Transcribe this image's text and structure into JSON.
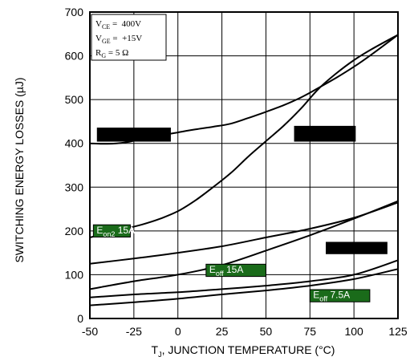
{
  "chart_data": {
    "type": "line",
    "title": "",
    "xlabel": "T_J, JUNCTION TEMPERATURE (°C)",
    "ylabel": "SWITCHING ENERGY LOSSES (µJ)",
    "xlim": [
      -50,
      125
    ],
    "ylim": [
      0,
      700
    ],
    "x_ticks": [
      "-50",
      "-25",
      "0",
      "25",
      "50",
      "75",
      "100",
      "125"
    ],
    "y_ticks": [
      "0",
      "100",
      "200",
      "300",
      "400",
      "500",
      "600",
      "700"
    ],
    "grid": true,
    "line_color": "#000000",
    "label_bg_color": "#1a6b1a",
    "redaction_color": "#000000",
    "conditions": {
      "vce": {
        "name": "V",
        "sub": "CE",
        "value": " =  400V"
      },
      "vge": {
        "name": "V",
        "sub": "GE",
        "value": " =  +15V"
      },
      "rg": {
        "name": "R",
        "sub": "G",
        "value": " = 5 Ω"
      }
    },
    "series": [
      {
        "id": "upper-redacted",
        "label_visible": false,
        "x": [
          -50,
          -40,
          -30,
          -20,
          -10,
          0,
          10,
          20,
          30,
          40,
          50,
          60,
          70,
          80,
          90,
          100,
          110,
          125
        ],
        "y": [
          400,
          399,
          402,
          410,
          418,
          425,
          432,
          438,
          445,
          458,
          472,
          487,
          505,
          527,
          550,
          575,
          603,
          648
        ]
      },
      {
        "id": "middle-redacted",
        "label_visible": false,
        "x": [
          -50,
          -40,
          -30,
          -20,
          -10,
          0,
          10,
          20,
          30,
          40,
          50,
          60,
          70,
          80,
          90,
          100,
          110,
          125
        ],
        "y": [
          185,
          195,
          205,
          215,
          228,
          245,
          270,
          300,
          332,
          370,
          405,
          440,
          480,
          525,
          560,
          590,
          615,
          648
        ]
      },
      {
        "name": "Eon2 15A",
        "label_main": "E",
        "label_sub": "on2",
        "label_rest": " 15A",
        "x": [
          -50,
          -25,
          0,
          25,
          50,
          75,
          100,
          125
        ],
        "y": [
          125,
          137,
          150,
          165,
          185,
          205,
          230,
          265
        ]
      },
      {
        "name": "Eoff 15A",
        "label_main": "E",
        "label_sub": "off",
        "label_rest": " 15A",
        "x": [
          -50,
          -25,
          0,
          25,
          50,
          75,
          100,
          125
        ],
        "y": [
          67,
          85,
          100,
          122,
          155,
          190,
          228,
          268
        ]
      },
      {
        "id": "lower-redacted",
        "label_visible": false,
        "x": [
          -50,
          -25,
          0,
          25,
          50,
          75,
          100,
          125
        ],
        "y": [
          48,
          55,
          60,
          67,
          75,
          85,
          100,
          133
        ]
      },
      {
        "name": "Eoff 7.5A",
        "label_main": "E",
        "label_sub": "off",
        "label_rest": " 7.5A",
        "x": [
          -50,
          -25,
          0,
          25,
          50,
          75,
          100,
          125
        ],
        "y": [
          30,
          37,
          45,
          55,
          64,
          75,
          90,
          113
        ]
      }
    ],
    "redactions": [
      {
        "x0": -46,
        "x1": -4,
        "y0": 436,
        "y1": 404
      },
      {
        "x0": 66,
        "x1": 101,
        "y0": 440,
        "y1": 404
      },
      {
        "x0": 84,
        "x1": 119,
        "y0": 175,
        "y1": 147
      }
    ],
    "labels": [
      {
        "series": "Eon2 15A",
        "x0": -48,
        "x1": -27,
        "y0": 214,
        "y1": 186
      },
      {
        "series": "Eoff 15A",
        "x0": 16,
        "x1": 50,
        "y0": 124,
        "y1": 96
      },
      {
        "series": "Eoff 7.5A",
        "x0": 75,
        "x1": 109,
        "y0": 66,
        "y1": 38
      }
    ]
  }
}
